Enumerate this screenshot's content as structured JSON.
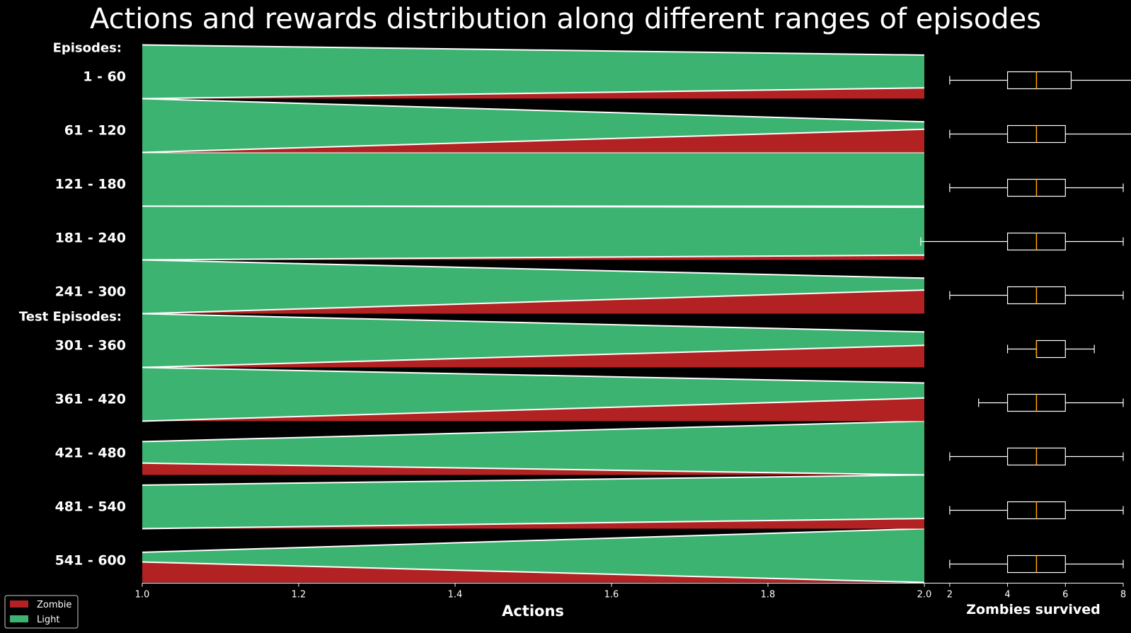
{
  "chart_data": [
    {
      "type": "area",
      "title": "Actions and rewards distribution along different ranges of episodes",
      "xlabel": "Actions",
      "xlim": [
        1.0,
        2.0
      ],
      "x_ticks": [
        "1.0",
        "1.2",
        "1.4",
        "1.6",
        "1.8",
        "2.0"
      ],
      "group_headers": [
        "Episodes:",
        "Test Episodes:"
      ],
      "header_before_row": [
        0,
        5
      ],
      "legend": {
        "position": "bottom-left",
        "entries": [
          "Zombie",
          "Light"
        ]
      },
      "colors": {
        "Zombie": "#b22222",
        "Light": "#3cb371",
        "background": "#000000",
        "outline": "#ffffff"
      },
      "x": [
        1.0,
        2.0
      ],
      "rows": [
        {
          "label": "1 - 60",
          "zombie_at_x": [
            0.0,
            0.2
          ],
          "total_at_x": [
            1.0,
            0.81
          ]
        },
        {
          "label": "61 - 120",
          "zombie_at_x": [
            0.0,
            0.43
          ],
          "total_at_x": [
            1.0,
            0.57
          ]
        },
        {
          "label": "121 - 180",
          "zombie_at_x": [
            0.0,
            0.0
          ],
          "total_at_x": [
            1.0,
            1.0
          ]
        },
        {
          "label": "181 - 240",
          "zombie_at_x": [
            0.0,
            0.09
          ],
          "total_at_x": [
            1.0,
            0.98
          ]
        },
        {
          "label": "241 - 300",
          "zombie_at_x": [
            0.0,
            0.44
          ],
          "total_at_x": [
            1.0,
            0.66
          ]
        },
        {
          "label": "301 - 360",
          "zombie_at_x": [
            0.0,
            0.41
          ],
          "total_at_x": [
            1.0,
            0.66
          ]
        },
        {
          "label": "361 - 420",
          "zombie_at_x": [
            0.0,
            0.43
          ],
          "total_at_x": [
            1.0,
            0.71
          ]
        },
        {
          "label": "421 - 480",
          "zombie_at_x": [
            0.22,
            0.0
          ],
          "total_at_x": [
            0.62,
            1.0
          ]
        },
        {
          "label": "481 - 540",
          "zombie_at_x": [
            0.0,
            0.19
          ],
          "total_at_x": [
            0.81,
            1.0
          ]
        },
        {
          "label": "541 - 600",
          "zombie_at_x": [
            0.38,
            0.0
          ],
          "total_at_x": [
            0.56,
            1.0
          ]
        }
      ]
    },
    {
      "type": "box",
      "xlabel": "Zombies survived",
      "xlim": [
        1.0,
        8.0
      ],
      "x_ticks": [
        "2",
        "4",
        "6",
        "8"
      ],
      "colors": {
        "box": "#ffffff",
        "median": "#ffa500"
      },
      "series": [
        {
          "label": "1 - 60",
          "whislo": 2,
          "q1": 4,
          "med": 5,
          "q3": 6.2,
          "whishi": 9
        },
        {
          "label": "61 - 120",
          "whislo": 2,
          "q1": 4,
          "med": 5,
          "q3": 6,
          "whishi": 9
        },
        {
          "label": "121 - 180",
          "whislo": 2,
          "q1": 4,
          "med": 5,
          "q3": 6,
          "whishi": 8
        },
        {
          "label": "181 - 240",
          "whislo": 1,
          "q1": 4,
          "med": 5,
          "q3": 6,
          "whishi": 8
        },
        {
          "label": "241 - 300",
          "whislo": 2,
          "q1": 4,
          "med": 5,
          "q3": 6,
          "whishi": 8
        },
        {
          "label": "301 - 360",
          "whislo": 4,
          "q1": 5,
          "med": 5,
          "q3": 6,
          "whishi": 7
        },
        {
          "label": "361 - 420",
          "whislo": 3,
          "q1": 4,
          "med": 5,
          "q3": 6,
          "whishi": 8
        },
        {
          "label": "421 - 480",
          "whislo": 2,
          "q1": 4,
          "med": 5,
          "q3": 6,
          "whishi": 8
        },
        {
          "label": "481 - 540",
          "whislo": 2,
          "q1": 4,
          "med": 5,
          "q3": 6,
          "whishi": 8
        },
        {
          "label": "541 - 600",
          "whislo": 2,
          "q1": 4,
          "med": 5,
          "q3": 6,
          "whishi": 8
        }
      ]
    }
  ]
}
